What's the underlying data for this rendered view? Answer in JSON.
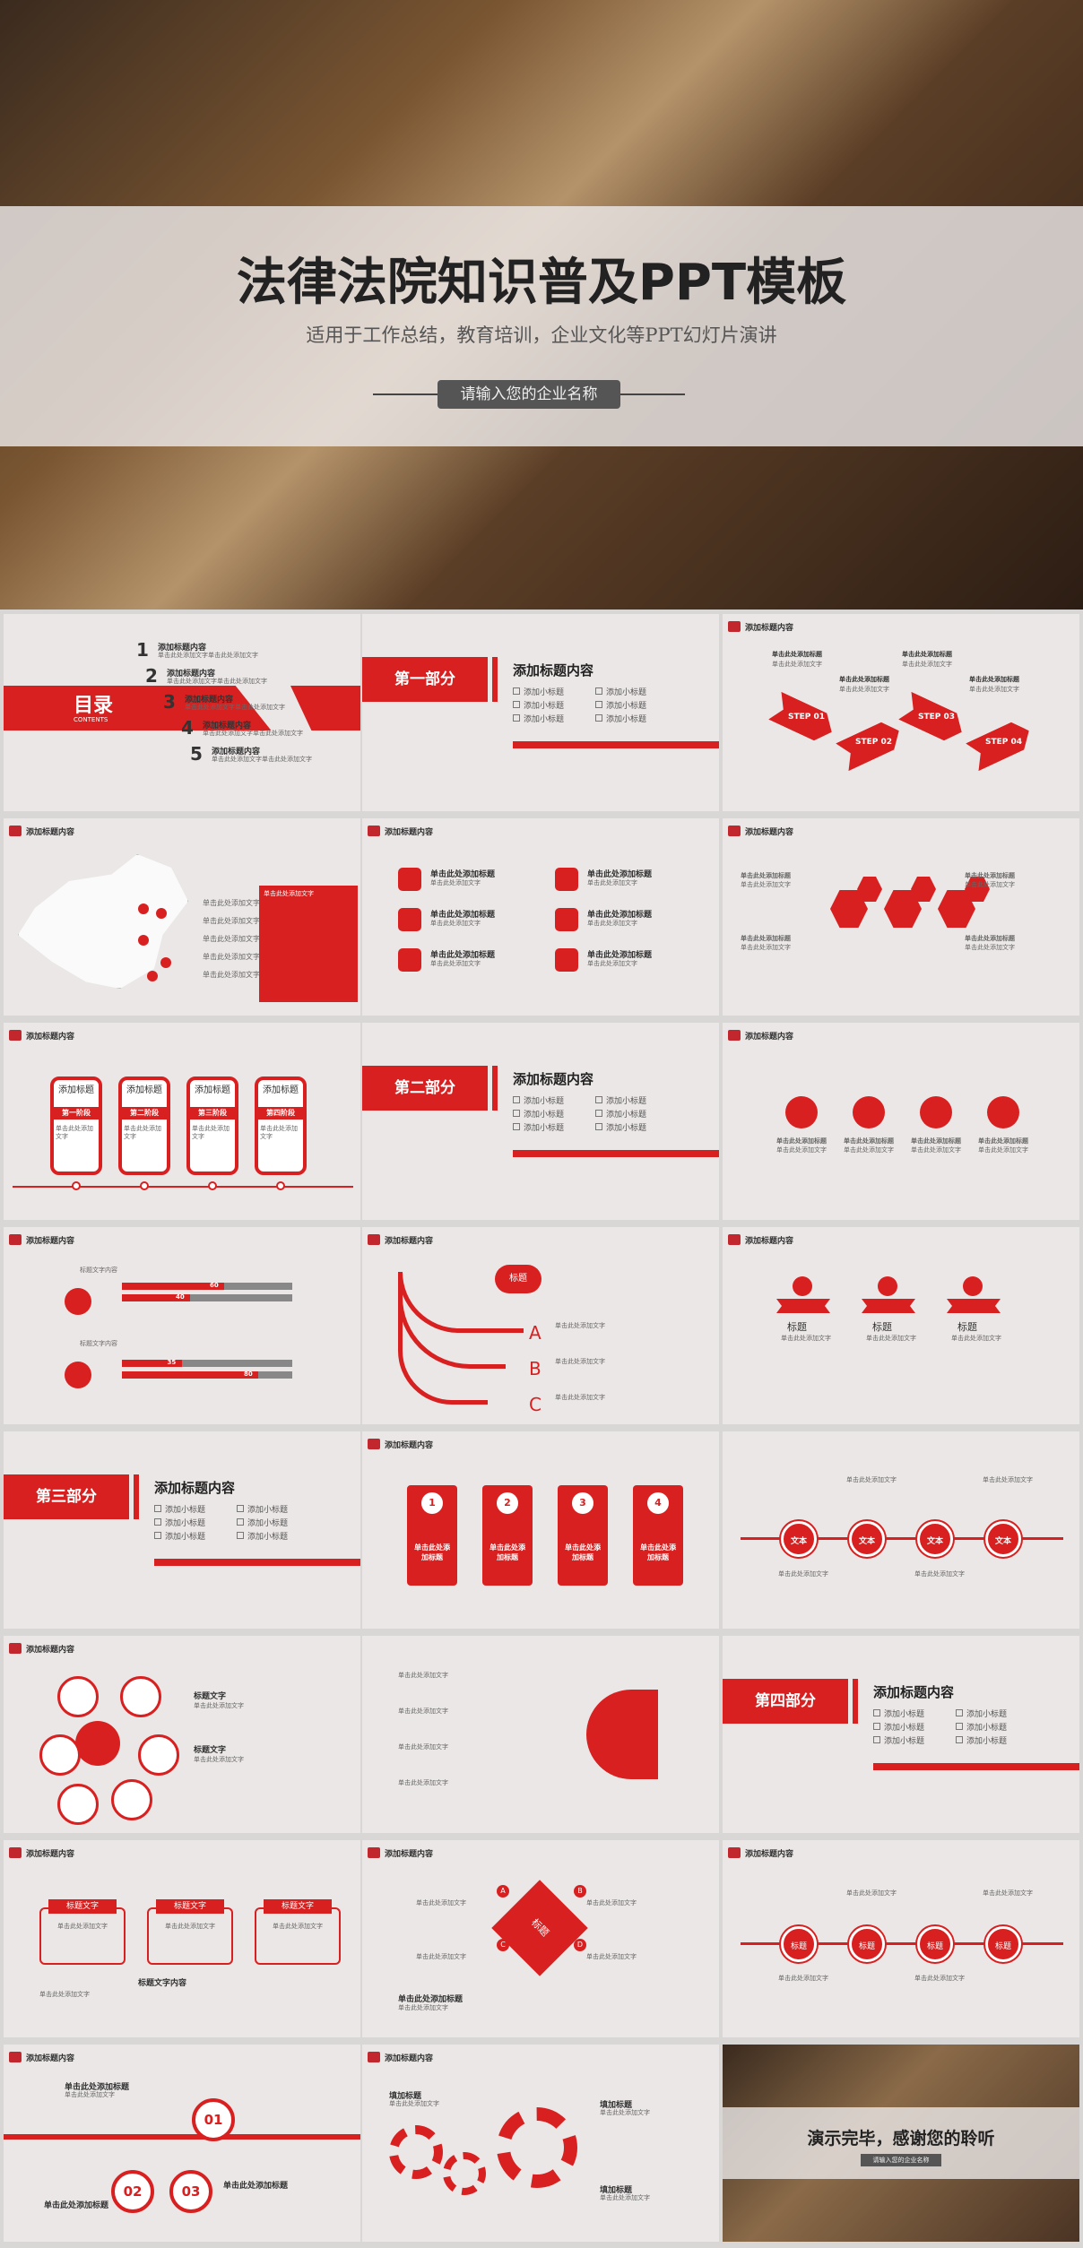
{
  "hero": {
    "title": "法律法院知识普及PPT模板",
    "subtitle": "适用于工作总结，教育培训，企业文化等PPT幻灯片演讲",
    "company": "请输入您的企业名称"
  },
  "common": {
    "header": "添加标题内容",
    "click_add": "单击此处添加标题",
    "placeholder": "单击此处添加文字",
    "item": "添加小标题",
    "text": "文本",
    "title_text": "标题文字",
    "title": "标题"
  },
  "toc": {
    "title": "目录",
    "subtitle": "CONTENTS",
    "items": [
      {
        "num": "1",
        "label": "添加标题内容",
        "desc": "单击此处添加文字单击此处添加文字"
      },
      {
        "num": "2",
        "label": "添加标题内容",
        "desc": "单击此处添加文字单击此处添加文字"
      },
      {
        "num": "3",
        "label": "添加标题内容",
        "desc": "单击此处添加文字单击此处添加文字"
      },
      {
        "num": "4",
        "label": "添加标题内容",
        "desc": "单击此处添加文字单击此处添加文字"
      },
      {
        "num": "5",
        "label": "添加标题内容",
        "desc": "单击此处添加文字单击此处添加文字"
      }
    ]
  },
  "sections": {
    "s1": "第一部分",
    "s2": "第二部分",
    "s3": "第三部分",
    "s4": "第四部分"
  },
  "steps": {
    "step": "STEP",
    "nums": [
      "01",
      "02",
      "03",
      "04"
    ]
  },
  "phases": {
    "add": "添加标题",
    "labels": [
      "第一阶段",
      "第二阶段",
      "第三阶段",
      "第四阶段"
    ]
  },
  "progress": {
    "values": [
      "60",
      "40",
      "35",
      "80"
    ]
  },
  "abc": [
    "A",
    "B",
    "C"
  ],
  "arrows": {
    "labels": [
      "单击此处添加标题",
      "单击此处添加标题",
      "单击此处添加标题",
      "单击此处添加标题"
    ]
  },
  "gears": {
    "label": "填加标题"
  },
  "progress_label": "标题文字内容",
  "ending": {
    "text": "演示完毕，感谢您的聆听",
    "company": "请输入您的企业名称"
  },
  "colors": {
    "accent": "#d92020"
  }
}
